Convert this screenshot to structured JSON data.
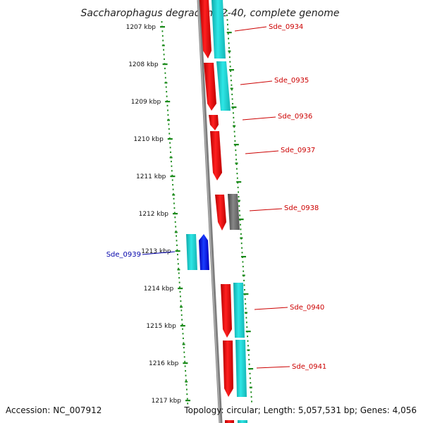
{
  "title": "Saccharophagus degradans 2-40, complete genome",
  "footer": {
    "accession": "Accession: NC_007912",
    "summary": "Topology: circular; Length: 5,057,531 bp; Genes: 4,056"
  },
  "colors": {
    "forward_cds": "#ff1a1a",
    "reverse_cds": "#1e6bff",
    "forward_track": "#22d3d3",
    "reverse_track": "#22d3d3",
    "other_feature": "#666666",
    "backbone": "#8a8a8a",
    "axis_dots": "#1a8a1a",
    "label_red": "#cc0000",
    "label_blue": "#0000aa"
  },
  "ticks": [
    "1207 kbp",
    "1208 kbp",
    "1209 kbp",
    "1210 kbp",
    "1211 kbp",
    "1212 kbp",
    "1213 kbp",
    "1214 kbp",
    "1215 kbp",
    "1216 kbp",
    "1217 kbp"
  ],
  "genes": [
    {
      "id": "Sde_0934",
      "strand": "+",
      "color_key": "label_red"
    },
    {
      "id": "Sde_0935",
      "strand": "+",
      "color_key": "label_red"
    },
    {
      "id": "Sde_0936",
      "strand": "+",
      "color_key": "label_red"
    },
    {
      "id": "Sde_0937",
      "strand": "+",
      "color_key": "label_red"
    },
    {
      "id": "Sde_0938",
      "strand": "+",
      "color_key": "label_red"
    },
    {
      "id": "Sde_0939",
      "strand": "-",
      "color_key": "label_blue"
    },
    {
      "id": "Sde_0940",
      "strand": "+",
      "color_key": "label_red"
    },
    {
      "id": "Sde_0941",
      "strand": "+",
      "color_key": "label_red"
    }
  ]
}
